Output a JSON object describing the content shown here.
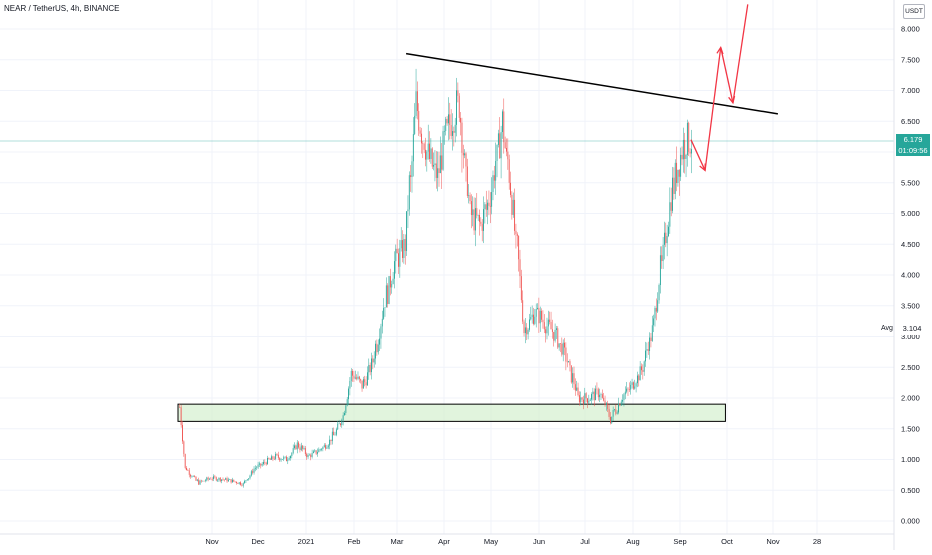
{
  "header": {
    "title": "NEAR / TetherUS, 4h, BINANCE"
  },
  "axis_unit": "USDT",
  "current_price": {
    "value": "6.179",
    "countdown": "01:09:56"
  },
  "avg": {
    "label": "Avg",
    "value": "3.104"
  },
  "colors": {
    "up": "#26a69a",
    "down": "#ef5350",
    "trendline": "#000000",
    "arrows": "#f23645",
    "support_zone_fill": "#d7f0d2",
    "support_zone_border": "#000000"
  },
  "chart_data": {
    "type": "candlestick",
    "ylim": [
      0,
      8.3
    ],
    "y_ticks": [
      "0.000",
      "0.500",
      "1.000",
      "1.500",
      "2.000",
      "2.500",
      "3.000",
      "3.500",
      "4.000",
      "4.500",
      "5.000",
      "5.500",
      "6.000",
      "6.500",
      "7.000",
      "7.500",
      "8.000"
    ],
    "x_ticks": [
      "Nov",
      "Dec",
      "2021",
      "Feb",
      "Mar",
      "Apr",
      "May",
      "Jun",
      "Jul",
      "Aug",
      "Sep",
      "Oct",
      "Nov",
      "28"
    ],
    "grid": true,
    "series": [
      {
        "values": [
          [
            "2020-10-14",
            1.85
          ],
          [
            "2020-10-18",
            0.85
          ],
          [
            "2020-10-25",
            0.62
          ],
          [
            "2020-11-01",
            0.7
          ],
          [
            "2020-11-08",
            0.68
          ],
          [
            "2020-11-15",
            0.65
          ],
          [
            "2020-11-22",
            0.6
          ],
          [
            "2020-11-29",
            0.85
          ],
          [
            "2020-12-06",
            0.95
          ],
          [
            "2020-12-13",
            1.05
          ],
          [
            "2020-12-20",
            1.0
          ],
          [
            "2020-12-27",
            1.25
          ],
          [
            "2021-01-03",
            1.05
          ],
          [
            "2021-01-10",
            1.15
          ],
          [
            "2021-01-17",
            1.3
          ],
          [
            "2021-01-24",
            1.6
          ],
          [
            "2021-01-31",
            2.4
          ],
          [
            "2021-02-07",
            2.2
          ],
          [
            "2021-02-14",
            2.6
          ],
          [
            "2021-02-21",
            3.5
          ],
          [
            "2021-02-28",
            4.2
          ],
          [
            "2021-03-07",
            4.5
          ],
          [
            "2021-03-14",
            6.8
          ],
          [
            "2021-03-21",
            6.0
          ],
          [
            "2021-03-28",
            5.6
          ],
          [
            "2021-04-04",
            6.4
          ],
          [
            "2021-04-11",
            6.8
          ],
          [
            "2021-04-18",
            5.0
          ],
          [
            "2021-04-25",
            4.8
          ],
          [
            "2021-05-02",
            5.4
          ],
          [
            "2021-05-09",
            6.5
          ],
          [
            "2021-05-16",
            5.0
          ],
          [
            "2021-05-23",
            3.1
          ],
          [
            "2021-05-30",
            3.4
          ],
          [
            "2021-06-06",
            3.2
          ],
          [
            "2021-06-13",
            3.0
          ],
          [
            "2021-06-20",
            2.6
          ],
          [
            "2021-06-27",
            2.0
          ],
          [
            "2021-07-04",
            2.0
          ],
          [
            "2021-07-11",
            2.1
          ],
          [
            "2021-07-18",
            1.65
          ],
          [
            "2021-07-25",
            2.0
          ],
          [
            "2021-08-01",
            2.2
          ],
          [
            "2021-08-08",
            2.5
          ],
          [
            "2021-08-15",
            3.2
          ],
          [
            "2021-08-22",
            4.5
          ],
          [
            "2021-08-29",
            5.6
          ],
          [
            "2021-09-05",
            6.2
          ],
          [
            "2021-09-09",
            6.179
          ]
        ]
      }
    ],
    "annotations": {
      "trendline": [
        [
          "2021-03-07",
          7.6
        ],
        [
          "2021-11-04",
          6.62
        ]
      ],
      "support_zone": {
        "x": [
          "2020-10-13",
          "2021-09-30"
        ],
        "y": [
          1.62,
          1.9
        ]
      },
      "arrows": [
        [
          [
            "2021-09-08",
            6.2
          ],
          [
            "2021-09-17",
            5.7
          ],
          [
            "2021-09-27",
            7.7
          ],
          [
            "2021-10-05",
            6.8
          ],
          [
            "2021-10-15",
            8.4
          ]
        ]
      ]
    }
  }
}
